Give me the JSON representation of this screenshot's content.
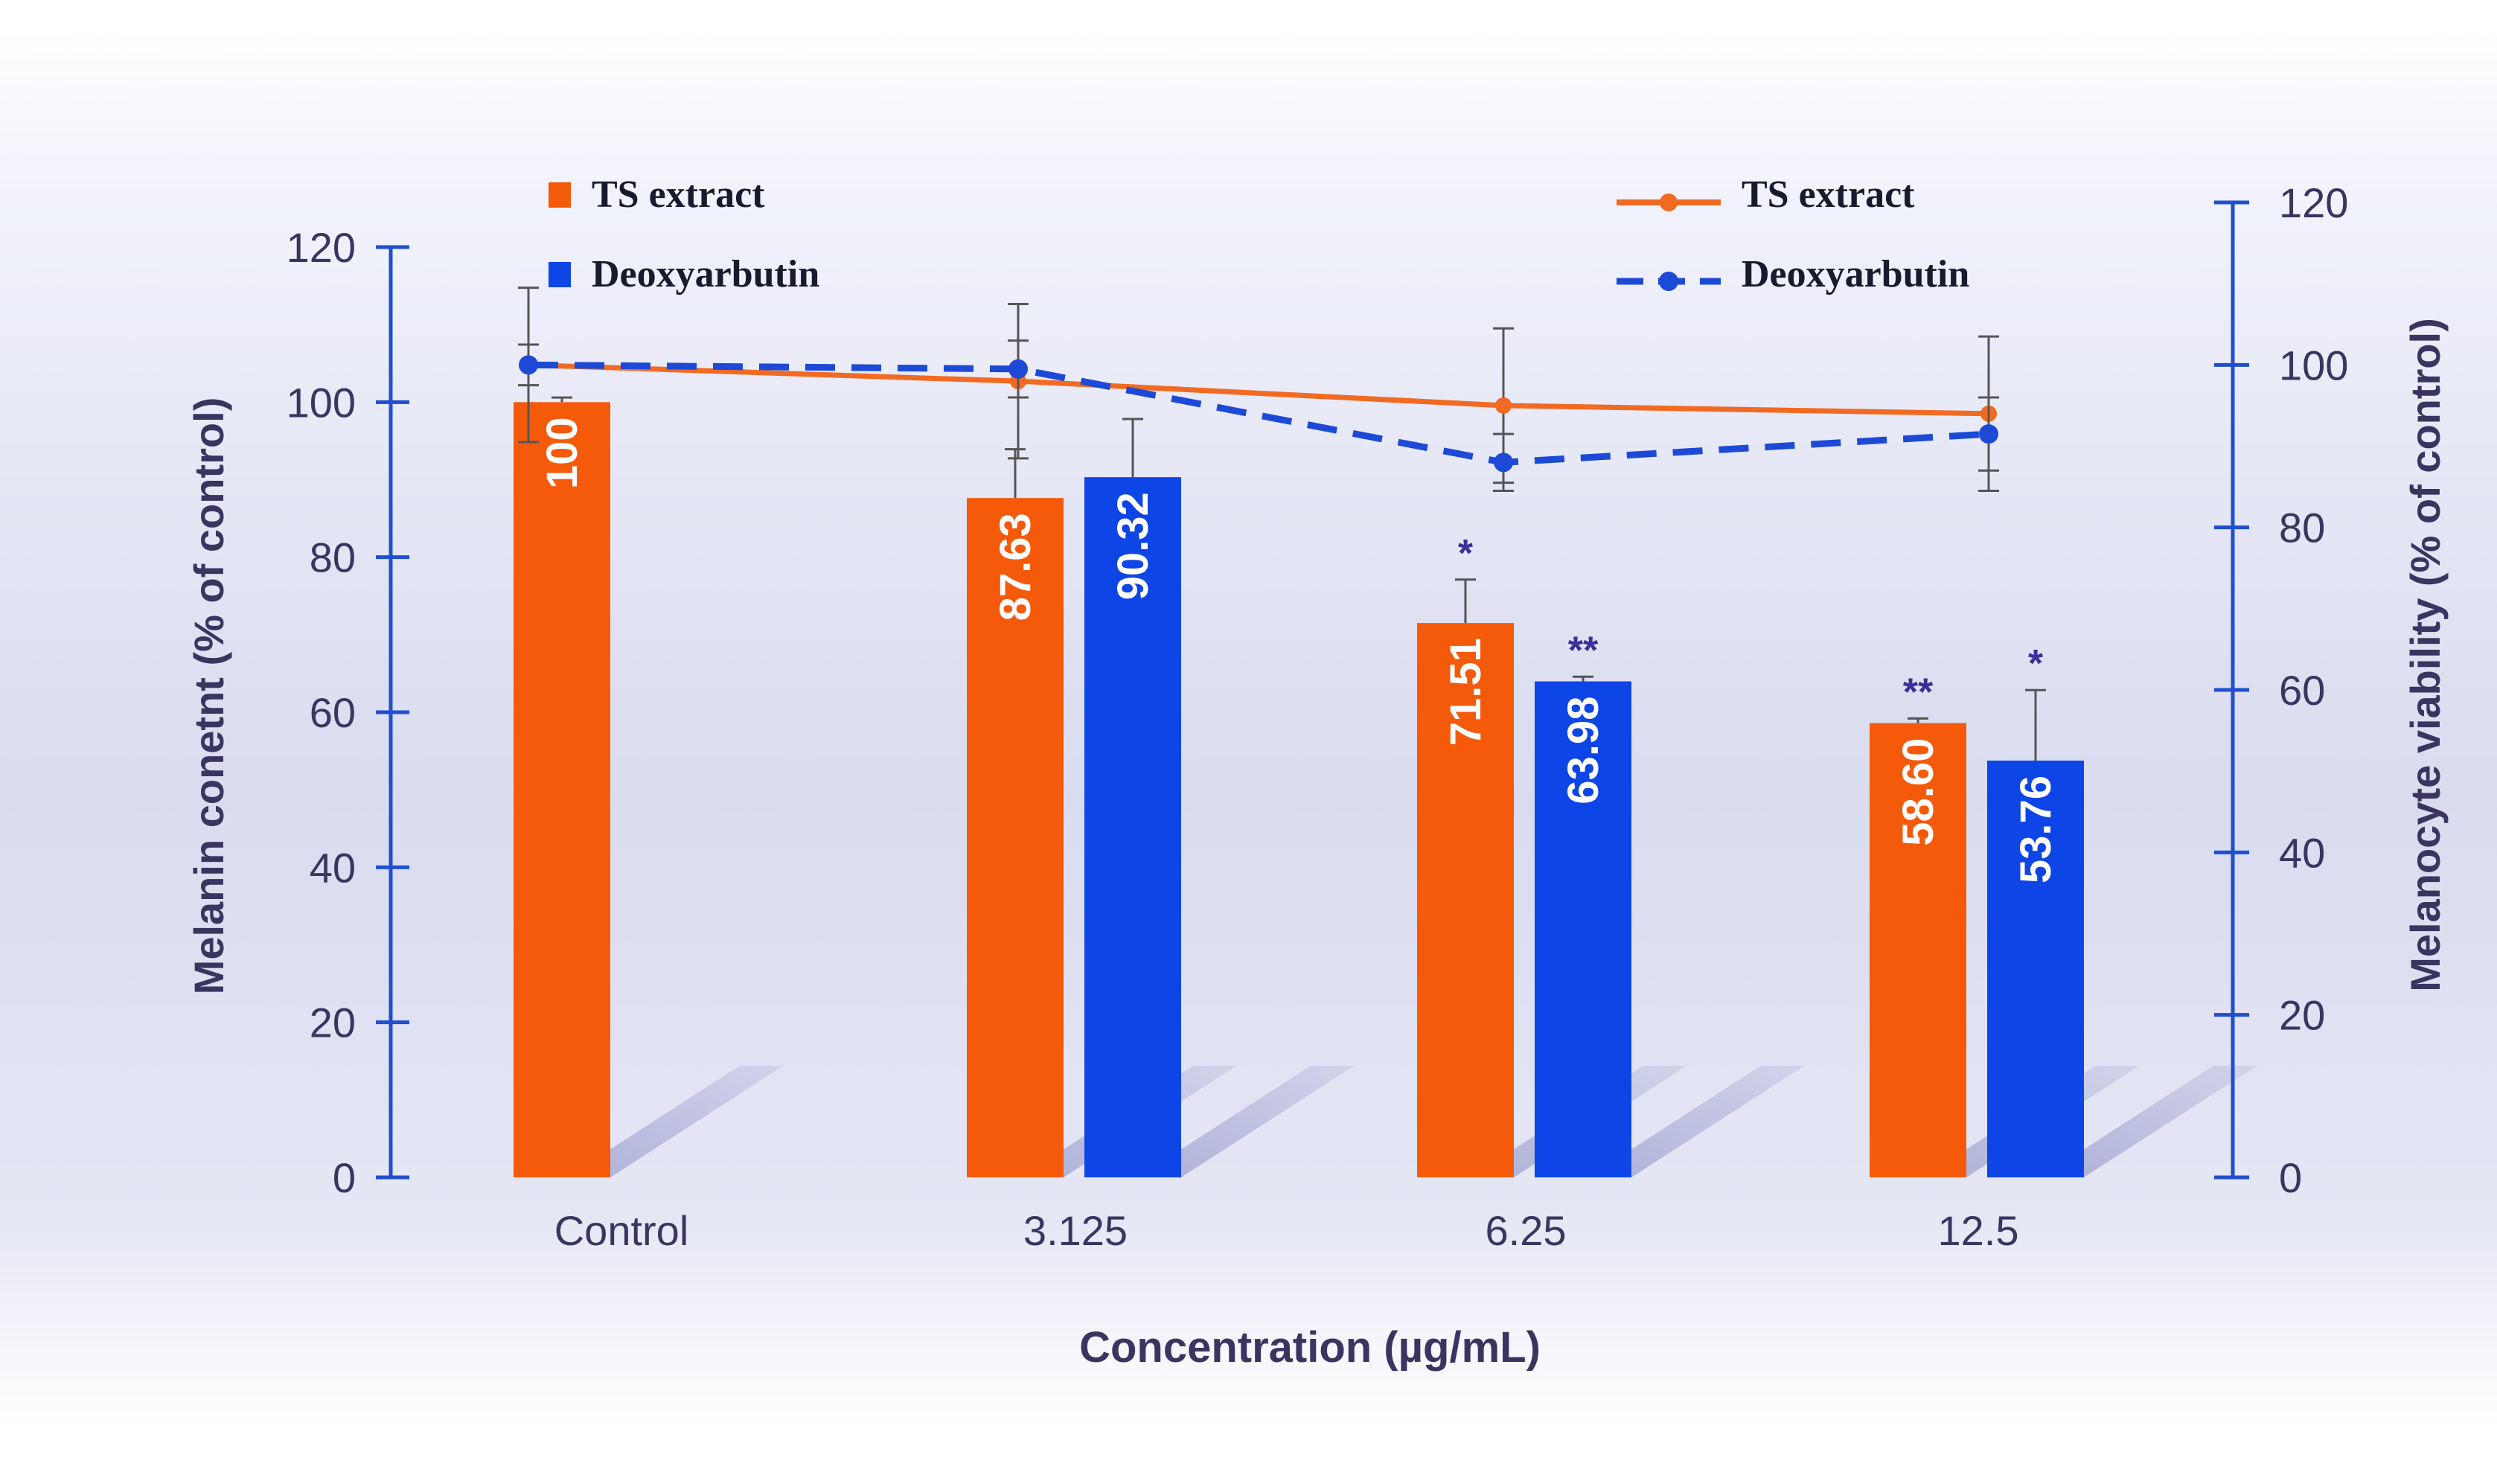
{
  "chart_data": {
    "type": "bar",
    "xlabel": "Concentration (µg/mL)",
    "ylabel": "Melanin conetnt (% of control)",
    "y2label": "Melanocyte viability (% of control)",
    "categories": [
      "Control",
      "3.125",
      "6.25",
      "12.5"
    ],
    "ylim": [
      0,
      120
    ],
    "y2lim": [
      0,
      120
    ],
    "yticks": [
      0,
      20,
      40,
      60,
      80,
      100,
      120
    ],
    "y2ticks": [
      0,
      20,
      40,
      60,
      80,
      100,
      120
    ],
    "bar_series": [
      {
        "name": "TS extract",
        "color": "#f55a0a",
        "values": [
          100,
          87.63,
          71.51,
          58.6
        ],
        "value_labels": [
          "100",
          "87.63",
          "71.51",
          "58.60"
        ],
        "errors": [
          0.6,
          6.3,
          5.6,
          0.6
        ],
        "significance": [
          "",
          "",
          "*",
          "**"
        ]
      },
      {
        "name": "Deoxyarbutin",
        "color": "#0d45e6",
        "values": [
          null,
          90.32,
          63.98,
          53.76
        ],
        "value_labels": [
          "",
          "90.32",
          "63.98",
          "53.76"
        ],
        "errors": [
          null,
          7.5,
          0.6,
          9.1
        ],
        "significance": [
          "",
          "",
          "**",
          "*"
        ]
      }
    ],
    "line_series": [
      {
        "name": "TS extract",
        "color": "#f26a22",
        "style": "solid",
        "values": [
          100,
          98,
          95,
          94
        ],
        "errors": [
          9.5,
          9.5,
          9.5,
          9.5
        ]
      },
      {
        "name": "Deoxyarbutin",
        "color": "#1c49d6",
        "style": "dashed",
        "values": [
          100,
          99.5,
          88,
          91.5
        ],
        "errors": [
          2.5,
          3.5,
          3.5,
          4.5
        ]
      }
    ],
    "legend_bars": [
      "TS extract",
      "Deoxyarbutin"
    ],
    "legend_lines": [
      "TS extract",
      "Deoxyarbutin"
    ],
    "axis_color": "#1f4fcf",
    "label_color": "#3a3560",
    "star_color": "#3a2f9a"
  }
}
